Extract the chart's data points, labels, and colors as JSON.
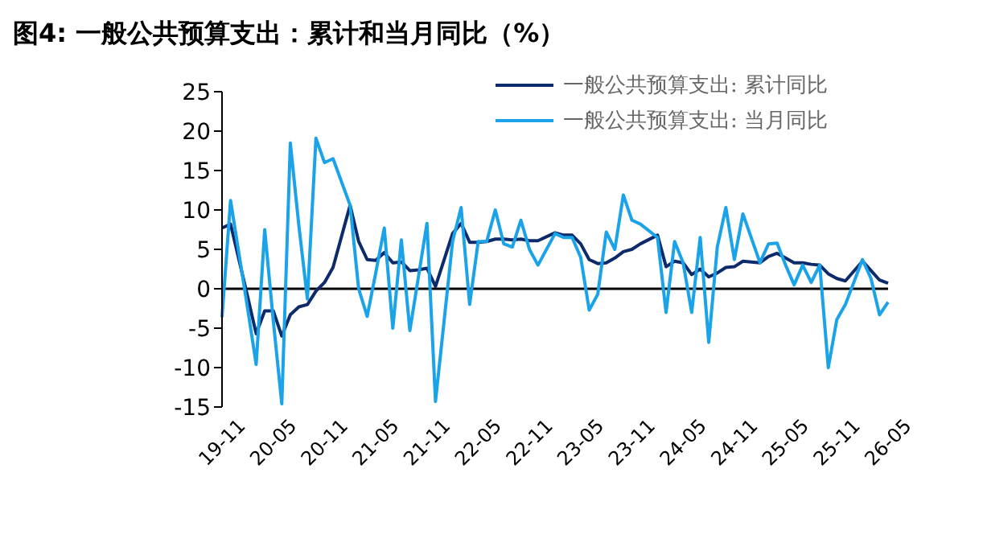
{
  "chart_data": {
    "type": "line",
    "title": "图4:  一般公共预算支出：累计和当月同比（%）",
    "categories": [
      "19-11",
      null,
      null,
      null,
      null,
      null,
      "20-05",
      null,
      null,
      null,
      null,
      null,
      "20-11",
      null,
      null,
      null,
      null,
      null,
      "21-05",
      null,
      null,
      null,
      null,
      null,
      "21-11",
      null,
      null,
      null,
      null,
      null,
      "22-05",
      null,
      null,
      null,
      null,
      null,
      "22-11",
      null,
      null,
      null,
      null,
      null,
      "23-05",
      null,
      null,
      null,
      null,
      null,
      "23-11",
      null,
      null,
      null,
      null,
      null,
      "24-05",
      null,
      null,
      null,
      null,
      null,
      "24-11",
      null,
      null,
      null,
      null,
      null,
      "25-05",
      null,
      null,
      null,
      null,
      null,
      "25-11",
      null,
      null,
      null,
      null,
      null,
      "26-05"
    ],
    "series": [
      {
        "name": "一般公共预算支出: 累计同比",
        "color": "#0d2a6b",
        "values": [
          7.7,
          8.2,
          null,
          -1,
          -5.7,
          -2.8,
          -2.8,
          -6,
          -3.3,
          -2.3,
          -2,
          -0.3,
          0.8,
          2.7,
          null,
          10.6,
          6,
          3.7,
          3.6,
          4.6,
          3.3,
          3.4,
          2.3,
          2.4,
          2.6,
          0.3,
          null,
          7,
          8.3,
          5.9,
          5.9,
          6,
          6.3,
          6.3,
          6.2,
          6.3,
          6.1,
          6.1,
          null,
          7.1,
          6.8,
          6.8,
          5.7,
          3.7,
          3.2,
          3.3,
          3.9,
          4.7,
          5,
          5.7,
          null,
          6.8,
          2.8,
          3.5,
          3.3,
          1.8,
          2.5,
          1.5,
          2,
          2.7,
          2.8,
          3.5,
          null,
          3.3,
          4.1,
          4.5,
          3.9,
          3.3,
          3.3,
          3.1,
          3,
          1.9,
          1.3,
          1,
          null,
          3.5,
          2.3,
          1.1,
          0.7
        ]
      },
      {
        "name": "一般公共预算支出: 当月同比",
        "color": "#1aa3e8",
        "values": [
          -3.6,
          11.2,
          null,
          -2.5,
          -9.6,
          7.5,
          -4,
          -14.6,
          18.5,
          8,
          -1.3,
          19.1,
          16,
          16.5,
          null,
          10.6,
          0,
          -3.5,
          2,
          7.7,
          -5,
          6.2,
          -5.3,
          1.5,
          8.3,
          -14.3,
          null,
          6,
          10.3,
          -2,
          6,
          6,
          10,
          5.7,
          5.3,
          8.7,
          5,
          3,
          null,
          7,
          6.5,
          6.5,
          4,
          -2.7,
          -0.7,
          7.2,
          5,
          11.9,
          8.7,
          8.2,
          null,
          6.5,
          -3,
          6,
          3.3,
          -3,
          6.5,
          -6.8,
          5.3,
          10.3,
          3.7,
          9.5,
          null,
          3.3,
          5.7,
          5.8,
          3,
          0.5,
          3,
          0.8,
          3,
          -10,
          -3.9,
          -2,
          null,
          3.7,
          1.3,
          -3.3,
          -1.7
        ]
      }
    ],
    "ylim": [
      -15,
      25
    ],
    "yticks": [
      -15,
      -10,
      -5,
      0,
      5,
      10,
      15,
      20,
      25
    ],
    "ref_lines": [
      {
        "axis": "y",
        "value": 0,
        "color": "#000000"
      }
    ],
    "legend": "top right",
    "grid": false,
    "marker": "none",
    "line_style": "solid"
  }
}
